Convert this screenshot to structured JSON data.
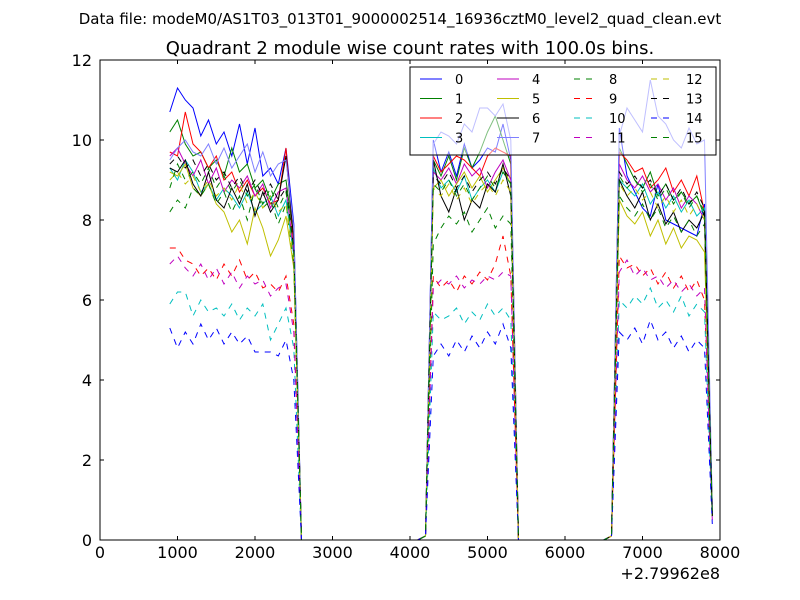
{
  "figure": {
    "suptitle": "Data file: modeM0/AS1T03_013T01_9000002514_16936cztM0_level2_quad_clean.evt"
  },
  "chart_data": {
    "type": "line",
    "title": "Quadrant 2 module wise count rates with 100.0s bins.",
    "xlabel": "",
    "ylabel": "",
    "x_offset_label": "+2.79962e8",
    "xlim": [
      0,
      8000
    ],
    "ylim": [
      0,
      12
    ],
    "xticks": [
      0,
      1000,
      2000,
      3000,
      4000,
      5000,
      6000,
      7000,
      8000
    ],
    "yticks": [
      0,
      2,
      4,
      6,
      8,
      10,
      12
    ],
    "legend_columns": 4,
    "legend_position": "top-right",
    "base_x": [
      900,
      1000,
      1100,
      1200,
      1300,
      1400,
      1500,
      1600,
      1700,
      1800,
      1900,
      2000,
      2100,
      2200,
      2300,
      2400,
      2500,
      2600,
      3700,
      4100,
      4200,
      4300,
      4400,
      4500,
      4600,
      4700,
      4800,
      4900,
      5000,
      5100,
      5200,
      5300,
      5400,
      6500,
      6600,
      6700,
      6800,
      6900,
      7000,
      7100,
      7200,
      7300,
      7400,
      7500,
      7600,
      7700,
      7800,
      7900
    ],
    "series": [
      {
        "name": "0",
        "color": "#0000ff",
        "dash": "solid",
        "values": [
          10.7,
          11.3,
          11.0,
          10.8,
          10.1,
          10.5,
          9.9,
          10.2,
          9.6,
          10.4,
          9.4,
          10.3,
          9.1,
          9.3,
          8.9,
          9.8,
          7.9,
          0,
          0,
          0,
          0.1,
          10.0,
          9.2,
          9.7,
          9.1,
          9.9,
          9.3,
          9.5,
          9.8,
          9.7,
          10.4,
          9.5,
          0,
          0,
          0.1,
          10.3,
          9.1,
          8.7,
          8.3,
          8.1,
          8.9,
          8.0,
          7.9,
          7.8,
          7.7,
          7.6,
          8.4,
          0.8
        ]
      },
      {
        "name": "1",
        "color": "#008000",
        "dash": "solid",
        "values": [
          10.2,
          10.5,
          9.9,
          9.6,
          9.7,
          9.3,
          9.5,
          9.1,
          9.8,
          9.2,
          9.4,
          8.8,
          9.0,
          8.5,
          8.9,
          9.0,
          7.5,
          0,
          0,
          0,
          0.1,
          9.5,
          9.1,
          9.6,
          9.0,
          9.8,
          9.3,
          9.7,
          10.2,
          10.6,
          10.0,
          9.4,
          0,
          0,
          0.1,
          9.8,
          9.4,
          9.0,
          8.8,
          9.2,
          8.6,
          8.9,
          8.5,
          8.7,
          8.4,
          8.6,
          8.1,
          0.7
        ]
      },
      {
        "name": "2",
        "color": "#ff0000",
        "dash": "solid",
        "values": [
          9.7,
          9.6,
          10.7,
          9.9,
          9.7,
          9.3,
          9.6,
          9.0,
          9.2,
          8.7,
          9.0,
          8.6,
          8.8,
          8.4,
          8.5,
          9.8,
          7.3,
          0,
          0,
          0,
          0.1,
          9.6,
          9.2,
          9.4,
          9.6,
          9.5,
          9.3,
          9.1,
          9.6,
          9.8,
          9.7,
          9.6,
          0,
          0,
          0.1,
          9.7,
          9.5,
          9.2,
          9.3,
          8.8,
          9.0,
          9.3,
          8.7,
          9.0,
          8.6,
          9.1,
          8.2,
          0.7
        ]
      },
      {
        "name": "3",
        "color": "#00bfbf",
        "dash": "solid",
        "values": [
          9.3,
          9.0,
          9.5,
          9.2,
          8.7,
          8.9,
          8.5,
          8.8,
          8.6,
          8.3,
          8.7,
          8.2,
          8.4,
          8.6,
          8.1,
          8.5,
          7.1,
          0,
          0,
          0,
          0.1,
          9.3,
          8.8,
          9.0,
          8.7,
          9.1,
          8.5,
          8.8,
          9.0,
          8.7,
          9.2,
          8.9,
          0,
          0,
          0.1,
          9.0,
          8.8,
          8.6,
          8.9,
          8.4,
          8.7,
          8.3,
          8.6,
          8.2,
          8.5,
          8.1,
          8.3,
          0.6
        ]
      },
      {
        "name": "4",
        "color": "#bf00bf",
        "dash": "solid",
        "values": [
          9.6,
          9.8,
          9.4,
          9.1,
          9.5,
          8.9,
          9.3,
          8.7,
          9.0,
          8.8,
          9.1,
          8.6,
          8.9,
          8.3,
          8.7,
          8.8,
          7.2,
          0,
          0,
          0,
          0.1,
          9.2,
          9.0,
          9.3,
          8.9,
          9.4,
          9.1,
          9.3,
          8.8,
          9.2,
          9.5,
          9.0,
          0,
          0,
          0.1,
          9.4,
          9.0,
          8.8,
          9.1,
          8.7,
          8.9,
          8.5,
          8.8,
          8.3,
          8.6,
          8.4,
          8.0,
          0.6
        ]
      },
      {
        "name": "5",
        "color": "#bfbf00",
        "dash": "solid",
        "values": [
          9.2,
          9.1,
          9.4,
          8.8,
          8.6,
          8.9,
          8.4,
          8.2,
          7.7,
          8.0,
          7.4,
          8.3,
          7.8,
          7.1,
          7.5,
          8.1,
          6.8,
          0,
          0,
          0,
          0.1,
          8.8,
          9.0,
          8.6,
          8.9,
          9.2,
          8.8,
          9.1,
          8.7,
          9.0,
          9.3,
          8.9,
          0,
          0,
          0.1,
          8.5,
          8.1,
          7.9,
          8.2,
          7.6,
          8.0,
          7.4,
          7.8,
          7.3,
          7.6,
          7.5,
          7.2,
          0.6
        ]
      },
      {
        "name": "6",
        "color": "#000000",
        "dash": "solid",
        "values": [
          9.3,
          9.2,
          9.5,
          8.9,
          8.6,
          9.2,
          8.5,
          8.3,
          8.8,
          8.4,
          8.9,
          8.1,
          8.7,
          8.2,
          8.5,
          9.6,
          7.5,
          0,
          0,
          0,
          0.1,
          9.5,
          8.6,
          8.2,
          8.8,
          8.0,
          8.5,
          8.3,
          8.9,
          8.7,
          9.4,
          8.6,
          0,
          0,
          0.1,
          9.0,
          8.6,
          8.3,
          8.7,
          8.0,
          8.4,
          7.9,
          8.2,
          7.7,
          8.0,
          7.8,
          8.2,
          0.6
        ]
      },
      {
        "name": "7",
        "color": "#7f7fff",
        "dash": "solid",
        "values": [
          9.5,
          9.8,
          10.0,
          9.7,
          9.6,
          9.9,
          9.4,
          9.8,
          9.3,
          9.6,
          9.9,
          9.2,
          9.7,
          9.1,
          9.4,
          9.5,
          7.8,
          0,
          0,
          0,
          0.1,
          9.9,
          10.2,
          10.1,
          9.9,
          10.4,
          10.2,
          10.8,
          10.8,
          10.6,
          10.9,
          10.0,
          0,
          0,
          0.1,
          10.1,
          10.8,
          10.5,
          10.2,
          11.5,
          10.6,
          10.4,
          10.0,
          9.8,
          10.3,
          9.9,
          10.0,
          0.8
        ]
      },
      {
        "name": "8",
        "color": "#008000",
        "dash": "dashed",
        "values": [
          8.2,
          8.5,
          8.3,
          8.8,
          8.6,
          8.9,
          8.4,
          8.7,
          8.2,
          8.6,
          8.0,
          8.8,
          8.3,
          8.5,
          7.9,
          8.4,
          6.9,
          0,
          0,
          0,
          0.1,
          7.4,
          7.8,
          8.1,
          7.9,
          8.2,
          7.7,
          8.0,
          8.3,
          7.8,
          8.1,
          7.9,
          0,
          0,
          0.1,
          8.6,
          8.3,
          8.1,
          8.4,
          8.0,
          8.3,
          7.8,
          8.1,
          7.7,
          8.0,
          7.6,
          7.9,
          0.6
        ]
      },
      {
        "name": "9",
        "color": "#ff0000",
        "dash": "dashed",
        "values": [
          7.3,
          7.3,
          7.0,
          6.9,
          6.6,
          6.8,
          6.5,
          6.9,
          6.6,
          7.0,
          6.5,
          6.7,
          6.3,
          6.4,
          6.2,
          6.6,
          5.4,
          0,
          0,
          0,
          0.1,
          6.6,
          6.3,
          6.5,
          6.2,
          6.6,
          6.4,
          6.7,
          6.5,
          6.9,
          7.6,
          6.6,
          0,
          0,
          0.1,
          7.1,
          6.8,
          6.9,
          6.6,
          6.8,
          6.4,
          6.7,
          6.3,
          6.6,
          6.2,
          6.5,
          6.0,
          0.5
        ]
      },
      {
        "name": "10",
        "color": "#00bfbf",
        "dash": "dashed",
        "values": [
          5.9,
          6.2,
          6.2,
          5.6,
          6.0,
          5.7,
          5.8,
          5.6,
          5.9,
          5.5,
          5.8,
          5.6,
          5.9,
          5.0,
          5.4,
          5.8,
          4.8,
          0,
          0,
          0,
          0.1,
          5.7,
          5.5,
          5.6,
          5.8,
          5.4,
          5.7,
          5.5,
          5.9,
          5.6,
          5.8,
          5.5,
          0,
          0,
          0.1,
          6.0,
          5.8,
          6.1,
          5.9,
          6.3,
          5.8,
          6.0,
          5.7,
          6.1,
          5.6,
          5.9,
          5.7,
          0.5
        ]
      },
      {
        "name": "11",
        "color": "#bf00bf",
        "dash": "dashed",
        "values": [
          6.9,
          7.1,
          6.8,
          6.6,
          6.9,
          6.5,
          6.8,
          6.4,
          6.7,
          6.3,
          6.6,
          6.4,
          6.5,
          6.1,
          6.3,
          6.4,
          5.2,
          0,
          0,
          0,
          0.1,
          6.3,
          6.5,
          6.4,
          6.6,
          6.3,
          6.5,
          6.4,
          6.6,
          6.5,
          6.7,
          6.6,
          0,
          0,
          0.1,
          6.7,
          7.0,
          6.6,
          6.8,
          6.5,
          6.6,
          6.3,
          6.5,
          6.2,
          6.4,
          6.1,
          6.3,
          0.5
        ]
      },
      {
        "name": "12",
        "color": "#bfbf00",
        "dash": "dashed",
        "values": [
          9.0,
          9.2,
          8.9,
          9.1,
          8.7,
          9.0,
          8.6,
          8.8,
          8.5,
          8.9,
          8.4,
          8.7,
          8.3,
          8.6,
          8.2,
          8.4,
          7.0,
          0,
          0,
          0,
          0.1,
          8.8,
          8.6,
          8.9,
          8.5,
          8.8,
          8.4,
          8.7,
          8.9,
          8.6,
          9.0,
          8.7,
          0,
          0,
          0.1,
          8.9,
          8.6,
          8.8,
          8.5,
          8.7,
          8.3,
          8.6,
          8.2,
          8.5,
          8.1,
          8.4,
          8.0,
          0.6
        ]
      },
      {
        "name": "13",
        "color": "#000000",
        "dash": "dashed",
        "values": [
          9.4,
          9.6,
          9.3,
          9.5,
          9.1,
          9.4,
          9.0,
          9.2,
          8.8,
          9.1,
          8.7,
          9.0,
          8.6,
          8.9,
          8.5,
          8.8,
          7.3,
          0,
          0,
          0,
          0.1,
          9.1,
          8.9,
          9.2,
          8.8,
          9.1,
          8.7,
          9.0,
          9.2,
          8.9,
          9.3,
          9.0,
          0,
          0,
          0.1,
          9.2,
          8.9,
          9.1,
          8.8,
          9.0,
          8.6,
          8.9,
          8.5,
          8.8,
          8.4,
          8.7,
          8.3,
          0.6
        ]
      },
      {
        "name": "14",
        "color": "#0000ff",
        "dash": "dashed",
        "values": [
          5.3,
          4.8,
          5.2,
          4.9,
          5.4,
          5.0,
          5.3,
          4.9,
          5.2,
          4.9,
          5.1,
          4.7,
          4.7,
          4.7,
          4.6,
          5.0,
          4.0,
          0,
          0,
          0,
          0.1,
          4.6,
          4.9,
          4.6,
          5.0,
          4.7,
          5.1,
          4.8,
          5.2,
          4.9,
          5.4,
          4.8,
          0,
          0,
          0.1,
          5.2,
          5.0,
          5.3,
          4.9,
          5.5,
          5.0,
          5.2,
          4.8,
          5.1,
          4.7,
          5.0,
          4.8,
          0.4
        ]
      },
      {
        "name": "15",
        "color": "#008000",
        "dash": "dashed",
        "values": [
          8.8,
          9.4,
          9.0,
          9.2,
          8.9,
          9.3,
          8.8,
          9.1,
          8.7,
          9.0,
          8.6,
          8.9,
          8.4,
          8.8,
          8.3,
          8.7,
          7.2,
          0,
          0,
          0,
          0.1,
          8.9,
          8.7,
          9.0,
          8.6,
          8.9,
          8.5,
          8.8,
          9.1,
          8.8,
          9.2,
          8.9,
          0,
          0,
          0.1,
          9.1,
          8.8,
          9.0,
          8.7,
          8.9,
          8.5,
          8.8,
          8.4,
          8.7,
          8.3,
          8.6,
          8.2,
          0.6
        ]
      }
    ]
  }
}
